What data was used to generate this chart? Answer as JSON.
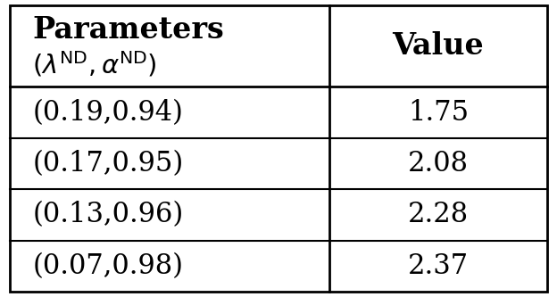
{
  "col1_header_line1": "Parameters",
  "col1_header_line2": "$(\\lambda^{\\mathrm{ND}},\\alpha^{\\mathrm{ND}})$",
  "col2_header": "Value",
  "rows": [
    [
      "(0.19,0.94)",
      "1.75"
    ],
    [
      "(0.17,0.95)",
      "2.08"
    ],
    [
      "(0.13,0.96)",
      "2.28"
    ],
    [
      "(0.07,0.98)",
      "2.37"
    ]
  ],
  "bg_color": "#ffffff",
  "border_color": "#000000",
  "text_color": "#000000",
  "col_split": 0.595,
  "font_size_header": 24,
  "font_size_header2": 21,
  "font_size_data": 22
}
